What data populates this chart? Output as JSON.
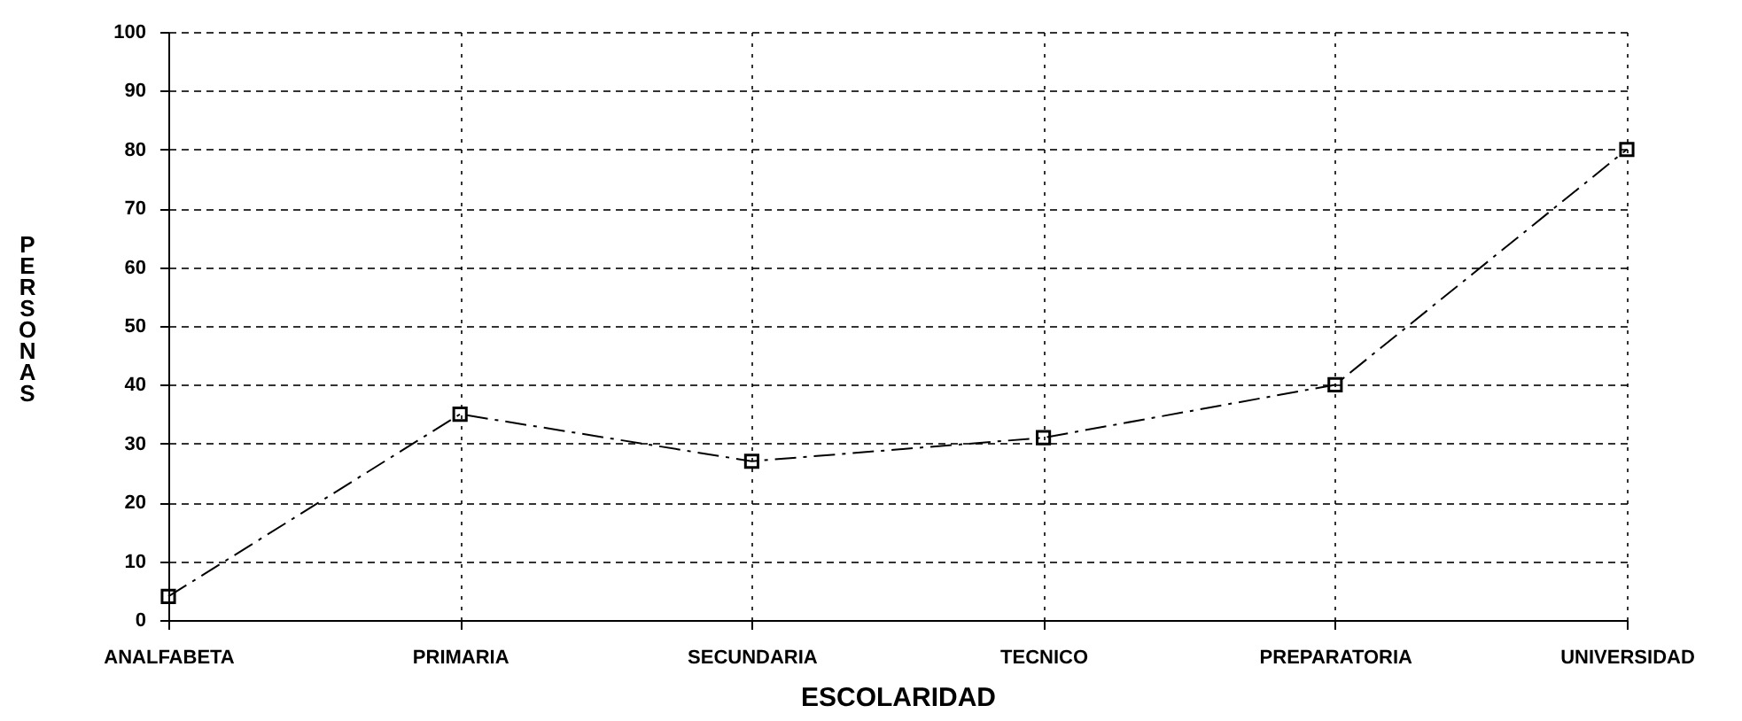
{
  "chart_data": {
    "type": "line",
    "xlabel": "ESCOLARIDAD",
    "ylabel": "PERSONAS",
    "categories": [
      "ANALFABETA",
      "PRIMARIA",
      "SECUNDARIA",
      "TECNICO",
      "PREPARATORIA",
      "UNIVERSIDAD"
    ],
    "series": [
      {
        "color": "#000000",
        "values": [
          4,
          35,
          27,
          31,
          40,
          80
        ]
      }
    ],
    "ylim": [
      0,
      100
    ],
    "yticks": [
      0,
      10,
      20,
      30,
      40,
      50,
      60,
      70,
      80,
      90,
      100
    ],
    "grid": true,
    "marker": "square",
    "line_style": "dashed"
  }
}
